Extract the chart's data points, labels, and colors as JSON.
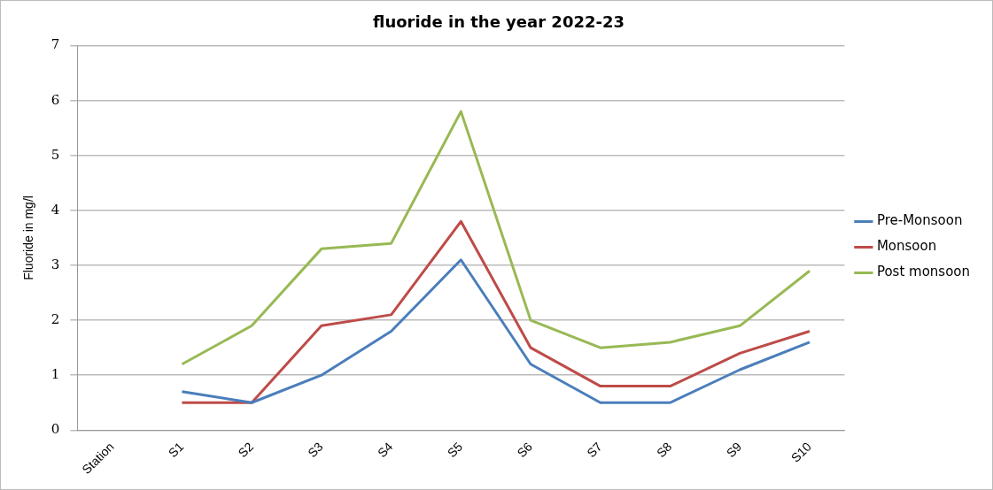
{
  "chart_data": {
    "type": "line",
    "title": "fluoride in the year 2022-23",
    "ylabel": "Fluoride in mg/l",
    "categories": [
      "Station",
      "S1",
      "S2",
      "S3",
      "S4",
      "S5",
      "S6",
      "S7",
      "S8",
      "S9",
      "S10"
    ],
    "series": [
      {
        "name": "Pre-Monsoon",
        "color": "#4a7ebb",
        "values": [
          null,
          0.7,
          0.5,
          1.0,
          1.8,
          3.1,
          1.2,
          0.5,
          0.5,
          1.1,
          1.6
        ]
      },
      {
        "name": "Monsoon",
        "color": "#be4b48",
        "values": [
          null,
          0.5,
          0.5,
          1.9,
          2.1,
          3.8,
          1.5,
          0.8,
          0.8,
          1.4,
          1.8
        ]
      },
      {
        "name": "Post monsoon",
        "color": "#98b954",
        "values": [
          null,
          1.2,
          1.9,
          3.3,
          3.4,
          5.8,
          2.0,
          1.5,
          1.6,
          1.9,
          2.9
        ]
      }
    ],
    "ylim": [
      0,
      7
    ],
    "yticks": [
      0,
      1,
      2,
      3,
      4,
      5,
      6,
      7
    ],
    "grid": "y",
    "legend": "right",
    "marker": "none",
    "line_style": "solid"
  }
}
